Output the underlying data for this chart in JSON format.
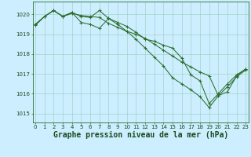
{
  "series": [
    {
      "x": [
        0,
        1,
        2,
        3,
        4,
        5,
        6,
        7,
        8,
        9,
        10,
        11,
        12,
        13,
        14,
        15,
        16,
        17,
        18,
        19,
        20,
        21,
        22,
        23
      ],
      "y": [
        1019.5,
        1019.9,
        1020.2,
        1019.9,
        1020.1,
        1019.6,
        1019.5,
        1019.3,
        1019.8,
        1019.5,
        1019.15,
        1018.75,
        1018.3,
        1017.85,
        1017.4,
        1016.8,
        1016.5,
        1016.2,
        1015.85,
        1015.3,
        1015.9,
        1016.35,
        1016.85,
        1017.2
      ]
    },
    {
      "x": [
        0,
        1,
        2,
        3,
        4,
        5,
        6,
        7,
        8,
        9,
        10,
        11,
        12,
        13,
        14,
        15,
        16,
        17,
        18,
        19,
        20,
        21,
        22,
        23
      ],
      "y": [
        1019.5,
        1019.9,
        1020.2,
        1019.9,
        1020.1,
        1019.9,
        1019.85,
        1020.2,
        1019.8,
        1019.6,
        1019.4,
        1019.1,
        1018.75,
        1018.65,
        1018.45,
        1018.3,
        1017.8,
        1016.95,
        1016.65,
        1015.5,
        1016.0,
        1016.5,
        1016.95,
        1017.25
      ]
    },
    {
      "x": [
        0,
        1,
        2,
        3,
        4,
        5,
        6,
        7,
        8,
        9,
        10,
        11,
        12,
        13,
        14,
        15,
        16,
        17,
        18,
        19,
        20,
        21,
        22,
        23
      ],
      "y": [
        1019.45,
        1019.9,
        1020.2,
        1019.9,
        1020.05,
        1019.95,
        1019.9,
        1019.85,
        1019.55,
        1019.35,
        1019.15,
        1019.0,
        1018.8,
        1018.5,
        1018.2,
        1017.9,
        1017.6,
        1017.35,
        1017.1,
        1016.9,
        1015.9,
        1016.1,
        1016.9,
        1017.25
      ]
    }
  ],
  "line_color": "#2d6e2d",
  "marker": "+",
  "markersize": 3.5,
  "linewidth": 0.75,
  "markeredgewidth": 0.75,
  "background_color": "#cceeff",
  "grid_color": "#99ccbb",
  "xlabel": "Graphe pression niveau de la mer (hPa)",
  "xlabel_color": "#1a4a1a",
  "ylabel_ticks": [
    1015,
    1016,
    1017,
    1018,
    1019,
    1020
  ],
  "xtick_labels": [
    "0",
    "1",
    "2",
    "3",
    "4",
    "5",
    "6",
    "7",
    "8",
    "9",
    "10",
    "11",
    "12",
    "13",
    "14",
    "15",
    "16",
    "17",
    "18",
    "19",
    "20",
    "21",
    "22",
    "23"
  ],
  "xlim": [
    -0.3,
    23.3
  ],
  "ylim": [
    1014.55,
    1020.65
  ],
  "tick_fontsize": 5.0,
  "xlabel_fontsize": 7.0,
  "tick_color": "#1a4a1a",
  "spine_color": "#2d6e2d",
  "figsize": [
    3.2,
    2.0
  ],
  "dpi": 100
}
